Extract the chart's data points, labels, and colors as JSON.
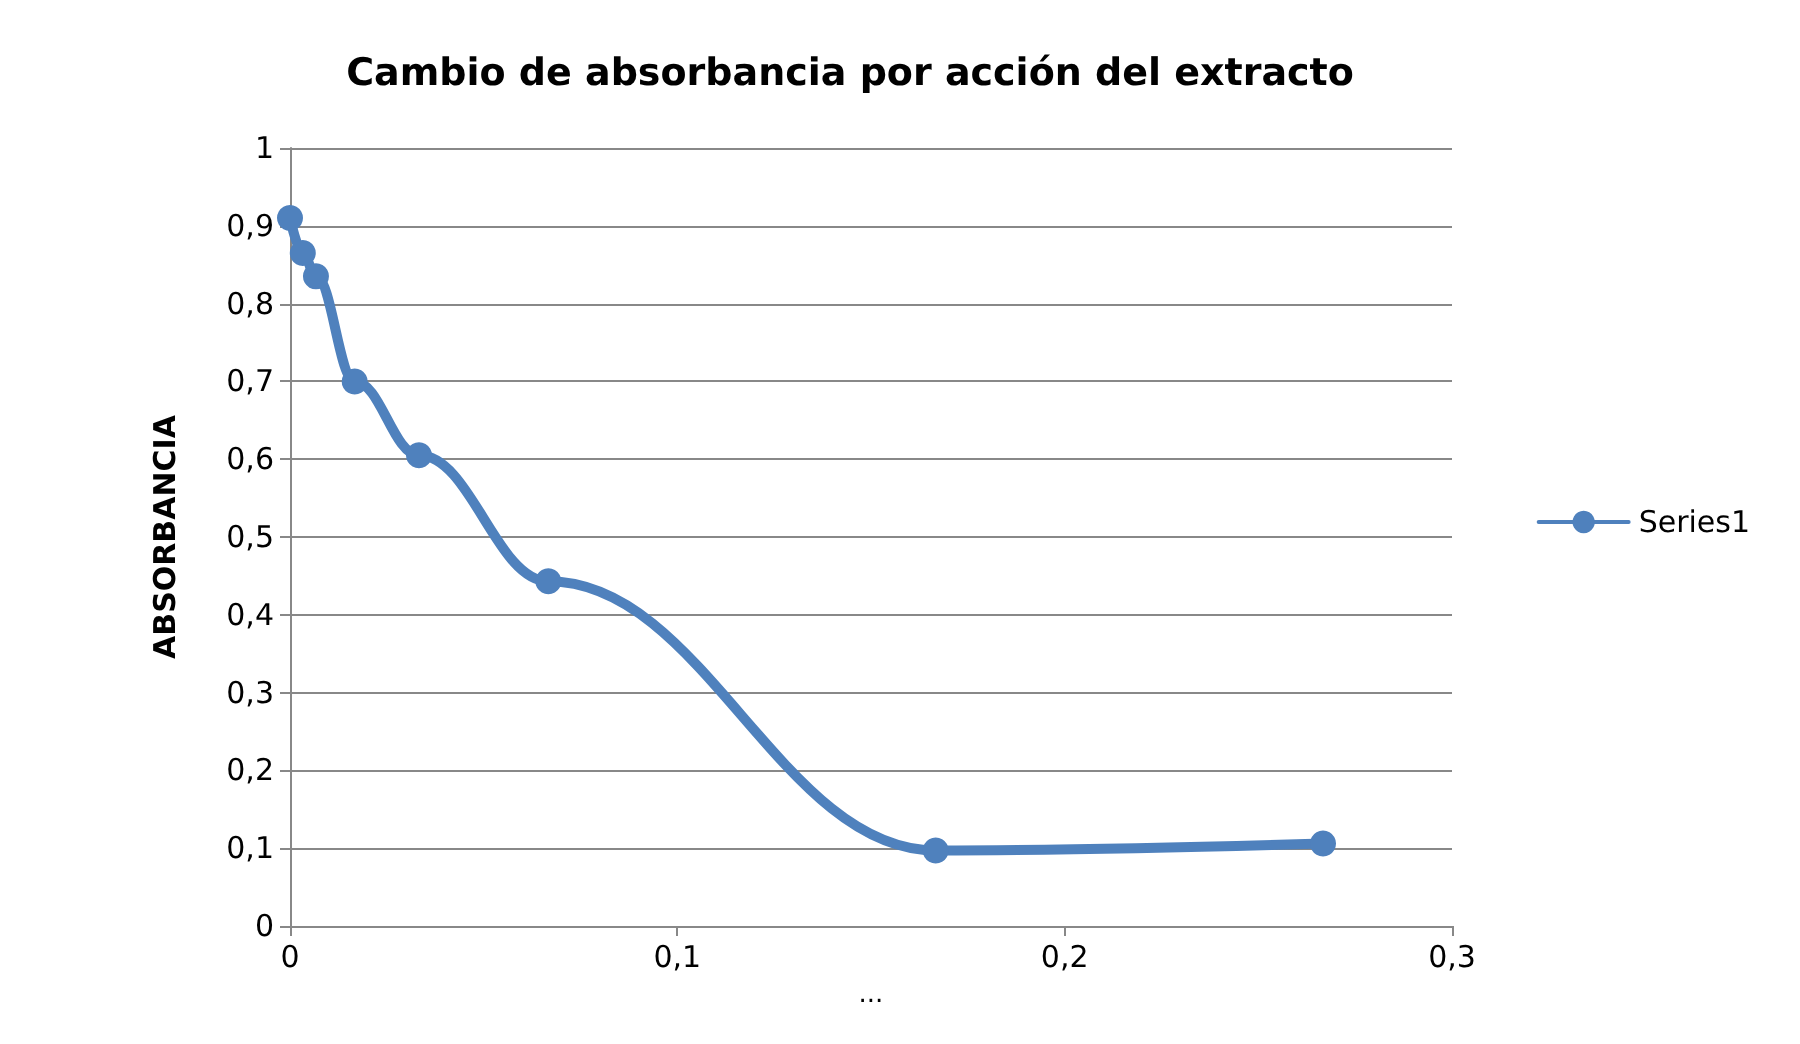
{
  "chart_data": {
    "type": "line",
    "title": "Cambio de absorbancia por acción del extracto",
    "xlabel": "...",
    "ylabel": "ABSORBANCIA",
    "x": [
      0,
      0.0033,
      0.0067,
      0.0167,
      0.0333,
      0.0667,
      0.1667,
      0.2667
    ],
    "series": [
      {
        "name": "Series1",
        "color": "#4f81bd",
        "values": [
          0.91,
          0.865,
          0.835,
          0.7,
          0.605,
          0.443,
          0.097,
          0.106
        ]
      }
    ],
    "xlim": [
      0,
      0.3
    ],
    "xticks": [
      {
        "value": 0,
        "label": "0"
      },
      {
        "value": 0.1,
        "label": "0,1"
      },
      {
        "value": 0.2,
        "label": "0,2"
      },
      {
        "value": 0.3,
        "label": "0,3"
      }
    ],
    "ylim": [
      0,
      1
    ],
    "yticks": [
      {
        "value": 0,
        "label": "0"
      },
      {
        "value": 0.1,
        "label": "0,1"
      },
      {
        "value": 0.2,
        "label": "0,2"
      },
      {
        "value": 0.3,
        "label": "0,3"
      },
      {
        "value": 0.4,
        "label": "0,4"
      },
      {
        "value": 0.5,
        "label": "0,5"
      },
      {
        "value": 0.6,
        "label": "0,6"
      },
      {
        "value": 0.7,
        "label": "0,7"
      },
      {
        "value": 0.8,
        "label": "0,8"
      },
      {
        "value": 0.9,
        "label": "0,9"
      },
      {
        "value": 1,
        "label": "1"
      }
    ],
    "grid": "y",
    "legend": "right",
    "marker": "circle",
    "line_style": "solid"
  }
}
